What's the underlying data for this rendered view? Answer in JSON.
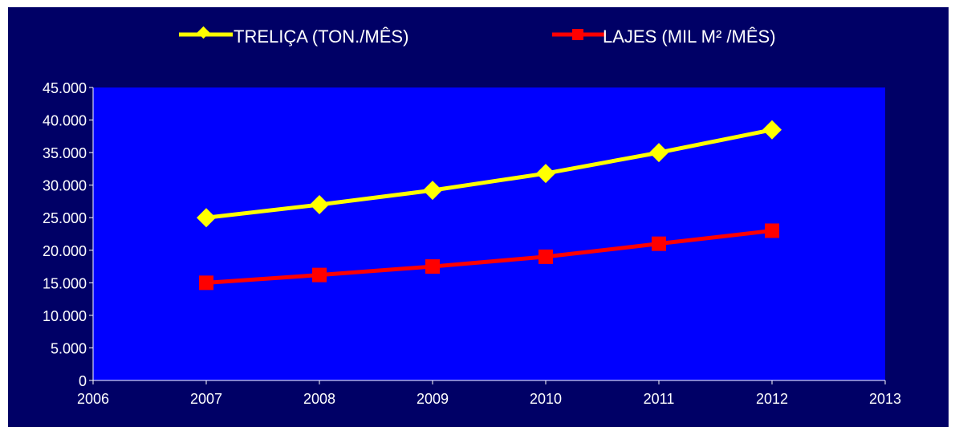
{
  "chart_data": {
    "type": "line",
    "title": "",
    "xlabel": "",
    "ylabel": "",
    "xlim": [
      2006,
      2013
    ],
    "ylim": [
      0,
      45000
    ],
    "x_ticks": [
      "2006",
      "2007",
      "2008",
      "2009",
      "2010",
      "2011",
      "2012",
      "2013"
    ],
    "y_ticks": [
      "0",
      "5.000",
      "10.000",
      "15.000",
      "20.000",
      "25.000",
      "30.000",
      "35.000",
      "40.000",
      "45.000"
    ],
    "grid": false,
    "legend_position": "top-center",
    "x": [
      2007,
      2008,
      2009,
      2010,
      2011,
      2012
    ],
    "series": [
      {
        "name": "TRELIÇA (TON./MÊS)",
        "values": [
          25000,
          27000,
          29200,
          31800,
          35000,
          38500
        ],
        "color": "#ffff00",
        "marker": "diamond"
      },
      {
        "name": "LAJES (MIL M² /MÊS)",
        "values": [
          15000,
          16200,
          17500,
          19000,
          21000,
          23000
        ],
        "color": "#ff0000",
        "marker": "square"
      }
    ],
    "colors": {
      "background": "#000066",
      "plot_area": "#0000ff",
      "axis": "#ffffff",
      "text": "#ffffff"
    }
  }
}
